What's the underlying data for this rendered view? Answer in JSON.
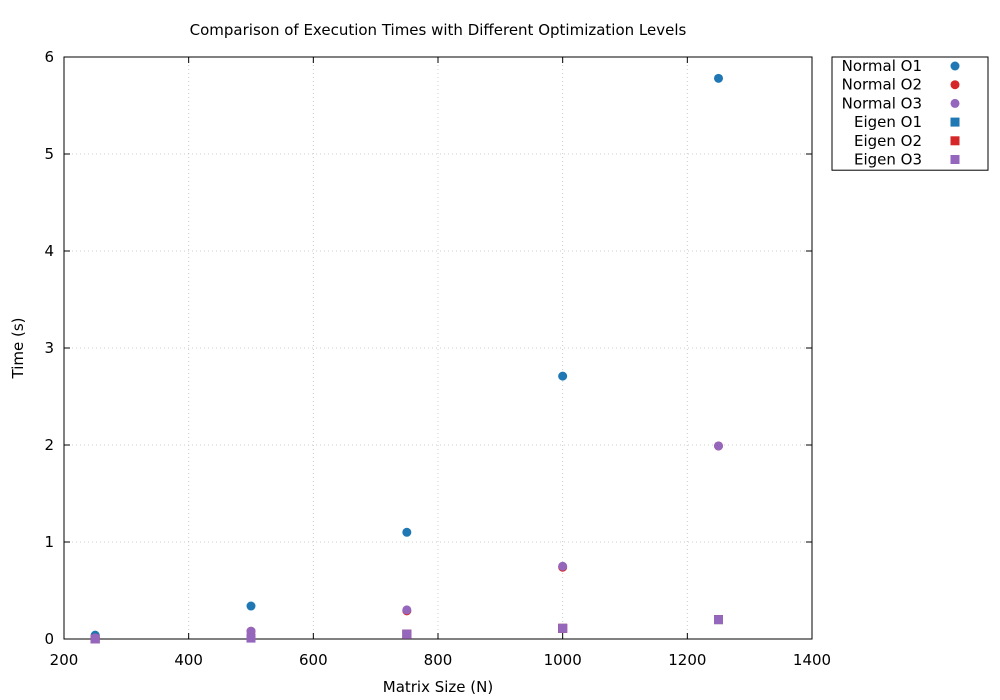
{
  "chart_data": {
    "type": "scatter",
    "title": "Comparison of Execution Times with Different Optimization Levels",
    "xlabel": "Matrix Size (N)",
    "ylabel": "Time (s)",
    "xlim": [
      200,
      1400
    ],
    "ylim": [
      0,
      6
    ],
    "x_ticks": [
      "200",
      "400",
      "600",
      "800",
      "1000",
      "1200",
      "1400"
    ],
    "y_ticks": [
      "0",
      "1",
      "2",
      "3",
      "4",
      "5",
      "6"
    ],
    "grid": true,
    "legend_position": "outside-right-top",
    "x": [
      250,
      500,
      750,
      1000,
      1250
    ],
    "series": [
      {
        "name": "Normal O1",
        "marker": "circle",
        "color": "#1f77b4",
        "values": [
          0.04,
          0.34,
          1.1,
          2.71,
          5.78
        ]
      },
      {
        "name": "Normal O2",
        "marker": "circle",
        "color": "#d62728",
        "values": [
          0.01,
          0.08,
          0.29,
          0.74,
          1.99
        ]
      },
      {
        "name": "Normal O3",
        "marker": "circle",
        "color": "#9467bd",
        "values": [
          0.01,
          0.08,
          0.3,
          0.75,
          1.99
        ]
      },
      {
        "name": "Eigen O1",
        "marker": "square",
        "color": "#1f77b4",
        "values": [
          0.0,
          0.01,
          0.05,
          0.11,
          0.2
        ]
      },
      {
        "name": "Eigen O2",
        "marker": "square",
        "color": "#d62728",
        "values": [
          0.0,
          0.01,
          0.05,
          0.11,
          0.2
        ]
      },
      {
        "name": "Eigen O3",
        "marker": "square",
        "color": "#9467bd",
        "values": [
          0.0,
          0.01,
          0.05,
          0.11,
          0.2
        ]
      }
    ]
  }
}
